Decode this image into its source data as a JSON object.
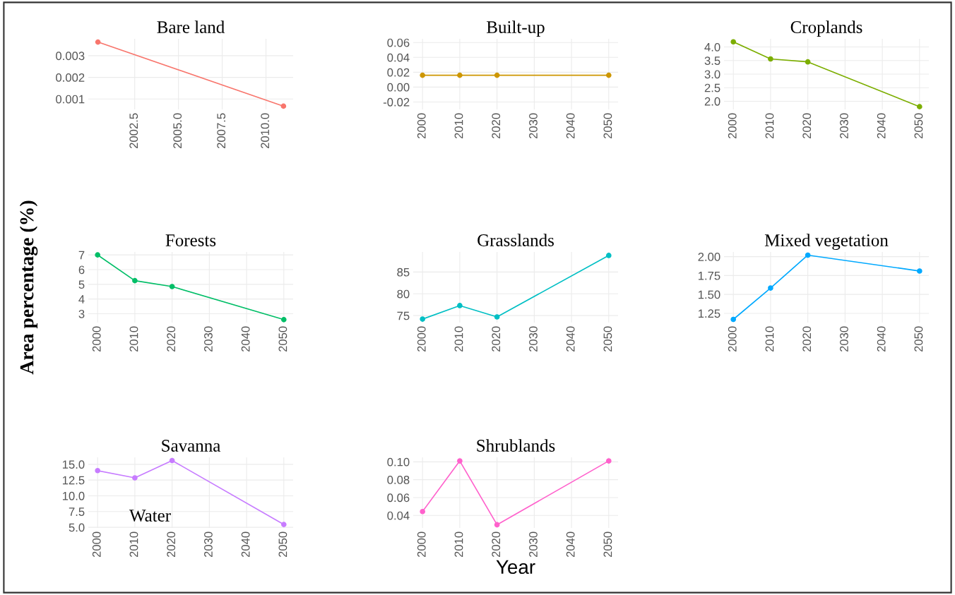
{
  "chart_data": [
    {
      "type": "line",
      "title": "Bare land",
      "x": [
        2000.4,
        2011.0
      ],
      "series": [
        {
          "color": "#F8766D",
          "values": [
            0.00363,
            0.00067
          ]
        }
      ],
      "xlim": [
        1999.85,
        2011.55
      ],
      "xticks": [
        2002.5,
        {
          "value": 2005,
          "label": "2005.0"
        },
        2007.5,
        {
          "value": 2010,
          "label": "2010.0"
        }
      ],
      "ylim": [
        0.00052,
        0.00378
      ],
      "yticks": [
        0.001,
        0.002,
        0.003
      ],
      "grid": true,
      "marker": "circle"
    },
    {
      "type": "line",
      "title": "Built-up",
      "x": [
        2000,
        2010,
        2020,
        2050
      ],
      "series": [
        {
          "color": "#CD9600",
          "values": [
            0.016,
            0.016,
            0.016,
            0.016
          ]
        }
      ],
      "xlim": [
        1997.5,
        2052.5
      ],
      "xticks": [
        2000,
        2010,
        2020,
        2030,
        2040,
        2050
      ],
      "ylim": [
        -0.03,
        0.065
      ],
      "yticks": [
        {
          "value": -0.02,
          "label": "-0.02"
        },
        {
          "value": 0,
          "label": "0.00"
        },
        {
          "value": 0.02,
          "label": "0.02"
        },
        {
          "value": 0.04,
          "label": "0.04"
        },
        {
          "value": 0.06,
          "label": "0.06"
        }
      ],
      "grid": true,
      "marker": "circle"
    },
    {
      "type": "line",
      "title": "Croplands",
      "x": [
        2000,
        2010,
        2020,
        2050
      ],
      "series": [
        {
          "color": "#7CAE00",
          "values": [
            4.19,
            3.56,
            3.45,
            1.8
          ]
        }
      ],
      "xlim": [
        1997.5,
        2052.5
      ],
      "xticks": [
        2000,
        2010,
        2020,
        2030,
        2040,
        2050
      ],
      "ylim": [
        1.7,
        4.3
      ],
      "yticks": [
        {
          "value": 2,
          "label": "2.0"
        },
        {
          "value": 2.5,
          "label": "2.5"
        },
        {
          "value": 3,
          "label": "3.0"
        },
        {
          "value": 3.5,
          "label": "3.5"
        },
        {
          "value": 4,
          "label": "4.0"
        }
      ],
      "grid": true,
      "marker": "circle"
    },
    {
      "type": "line",
      "title": "Forests",
      "ylabel": "Area percentage (%)",
      "x": [
        2000,
        2010,
        2020,
        2050
      ],
      "series": [
        {
          "color": "#00BE67",
          "values": [
            7.0,
            5.25,
            4.85,
            2.6
          ]
        }
      ],
      "xlim": [
        1997.5,
        2052.5
      ],
      "xticks": [
        2000,
        2010,
        2020,
        2030,
        2040,
        2050
      ],
      "ylim": [
        2.4,
        7.2
      ],
      "yticks": [
        3,
        4,
        5,
        6,
        7
      ],
      "grid": true,
      "marker": "circle"
    },
    {
      "type": "line",
      "title": "Grasslands",
      "x": [
        2000,
        2010,
        2020,
        2050
      ],
      "series": [
        {
          "color": "#00BFC4",
          "values": [
            74.2,
            77.3,
            74.7,
            88.8
          ]
        }
      ],
      "xlim": [
        1997.5,
        2052.5
      ],
      "xticks": [
        2000,
        2010,
        2020,
        2030,
        2040,
        2050
      ],
      "ylim": [
        73.4,
        89.6
      ],
      "yticks": [
        75,
        80,
        85
      ],
      "grid": true,
      "marker": "circle"
    },
    {
      "type": "line",
      "title": "Mixed vegetation",
      "x": [
        2000,
        2010,
        2020,
        2050
      ],
      "series": [
        {
          "color": "#00A9FF",
          "values": [
            1.17,
            1.585,
            2.02,
            1.81
          ]
        }
      ],
      "xlim": [
        1997.5,
        2052.5
      ],
      "xticks": [
        2000,
        2010,
        2020,
        2030,
        2040,
        2050
      ],
      "ylim": [
        1.128,
        2.062
      ],
      "yticks": [
        {
          "value": 1.25,
          "label": "1.25"
        },
        {
          "value": 1.5,
          "label": "1.50"
        },
        {
          "value": 1.75,
          "label": "1.75"
        },
        {
          "value": 2,
          "label": "2.00"
        }
      ],
      "grid": true,
      "marker": "circle"
    },
    {
      "type": "line",
      "title": "Savanna",
      "annotations": [
        "Water"
      ],
      "x": [
        2000,
        2010,
        2020,
        2050
      ],
      "series": [
        {
          "color": "#C77CFF",
          "values": [
            14.0,
            12.85,
            15.6,
            5.45
          ]
        }
      ],
      "xlim": [
        1997.5,
        2052.5
      ],
      "xticks": [
        2000,
        2010,
        2020,
        2030,
        2040,
        2050
      ],
      "ylim": [
        4.9,
        16.1
      ],
      "yticks": [
        {
          "value": 5,
          "label": "5.0"
        },
        {
          "value": 7.5,
          "label": "7.5"
        },
        {
          "value": 10,
          "label": "10.0"
        },
        {
          "value": 12.5,
          "label": "12.5"
        },
        {
          "value": 15,
          "label": "15.0"
        }
      ],
      "grid": true,
      "marker": "circle"
    },
    {
      "type": "line",
      "title": "Shrublands",
      "xlabel": "Year",
      "x": [
        2000,
        2010,
        2020,
        2050
      ],
      "series": [
        {
          "color": "#FF61CC",
          "values": [
            0.0444,
            0.101,
            0.0296,
            0.101
          ]
        }
      ],
      "xlim": [
        1997.5,
        2052.5
      ],
      "xticks": [
        2000,
        2010,
        2020,
        2030,
        2040,
        2050
      ],
      "ylim": [
        0.026,
        0.105
      ],
      "yticks": [
        {
          "value": 0.04,
          "label": "0.04"
        },
        {
          "value": 0.06,
          "label": "0.06"
        },
        {
          "value": 0.08,
          "label": "0.08"
        },
        {
          "value": 0.1,
          "label": "0.10"
        }
      ],
      "grid": true,
      "marker": "circle"
    }
  ]
}
